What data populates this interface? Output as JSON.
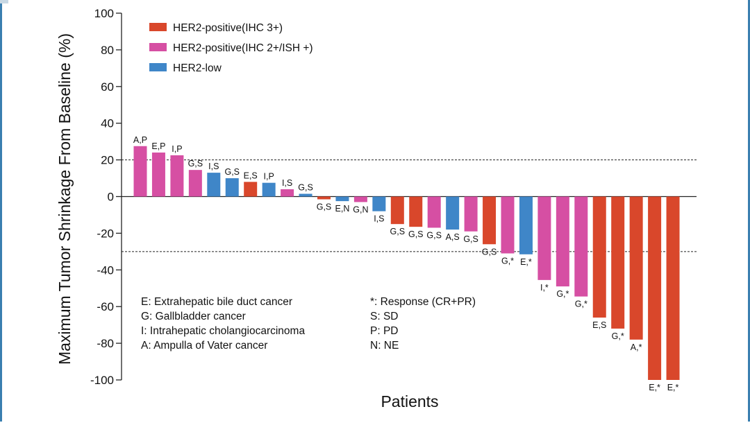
{
  "chart_data": {
    "type": "bar",
    "title": "",
    "xlabel": "Patients",
    "ylabel": "Maximum Tumor Shrinkage From Baseline (%)",
    "ylim": [
      -100,
      100
    ],
    "yticks": [
      "100",
      "80",
      "60",
      "40",
      "20",
      "0",
      "-20",
      "-40",
      "-60",
      "-80",
      "-100"
    ],
    "reference_lines": [
      20,
      -30
    ],
    "legend_position": "top-left",
    "legend": [
      {
        "key": "ihc3",
        "label": "HER2-positive(IHC 3+)",
        "color": "#d9472b"
      },
      {
        "key": "ihc2",
        "label": "HER2-positive(IHC 2+/ISH +)",
        "color": "#d64fa3"
      },
      {
        "key": "low",
        "label": "HER2-low",
        "color": "#3f86c8"
      }
    ],
    "bars": [
      {
        "label": "A,P",
        "value": 27.5,
        "group": "ihc2"
      },
      {
        "label": "E,P",
        "value": 24,
        "group": "ihc2"
      },
      {
        "label": "I,P",
        "value": 22.5,
        "group": "ihc2"
      },
      {
        "label": "G,S",
        "value": 14.5,
        "group": "ihc2"
      },
      {
        "label": "I,S",
        "value": 13,
        "group": "low"
      },
      {
        "label": "G,S",
        "value": 10,
        "group": "low"
      },
      {
        "label": "E,S",
        "value": 8,
        "group": "ihc3"
      },
      {
        "label": "I,P",
        "value": 7.5,
        "group": "low"
      },
      {
        "label": "I,S",
        "value": 4,
        "group": "ihc2"
      },
      {
        "label": "G,S",
        "value": 1.5,
        "group": "low"
      },
      {
        "label": "G,S",
        "value": -1.5,
        "group": "ihc3"
      },
      {
        "label": "E,N",
        "value": -2.5,
        "group": "low"
      },
      {
        "label": "G,N",
        "value": -3,
        "group": "ihc2"
      },
      {
        "label": "I,S",
        "value": -8,
        "group": "low"
      },
      {
        "label": "G,S",
        "value": -15,
        "group": "ihc3"
      },
      {
        "label": "G,S",
        "value": -16.5,
        "group": "ihc3"
      },
      {
        "label": "G,S",
        "value": -17,
        "group": "ihc2"
      },
      {
        "label": "A,S",
        "value": -18,
        "group": "low"
      },
      {
        "label": "G,S",
        "value": -19,
        "group": "ihc2"
      },
      {
        "label": "G,S",
        "value": -26,
        "group": "ihc3"
      },
      {
        "label": "G,*",
        "value": -31,
        "group": "ihc2"
      },
      {
        "label": "E,*",
        "value": -31.5,
        "group": "low"
      },
      {
        "label": "I,*",
        "value": -45.5,
        "group": "ihc2"
      },
      {
        "label": "G,*",
        "value": -49,
        "group": "ihc2"
      },
      {
        "label": "G,*",
        "value": -54.5,
        "group": "ihc2"
      },
      {
        "label": "E,S",
        "value": -66,
        "group": "ihc3"
      },
      {
        "label": "G,*",
        "value": -72,
        "group": "ihc3"
      },
      {
        "label": "A,*",
        "value": -78,
        "group": "ihc3"
      },
      {
        "label": "E,*",
        "value": -100,
        "group": "ihc3"
      },
      {
        "label": "E,*",
        "value": -100,
        "group": "ihc3"
      }
    ],
    "annotations": {
      "left": [
        "E: Extrahepatic bile duct cancer",
        "G: Gallbladder cancer",
        " I: Intrahepatic cholangiocarcinoma",
        "A: Ampulla of Vater cancer"
      ],
      "right": [
        "*: Response (CR+PR)",
        "S: SD",
        "P: PD",
        "N: NE"
      ]
    }
  }
}
